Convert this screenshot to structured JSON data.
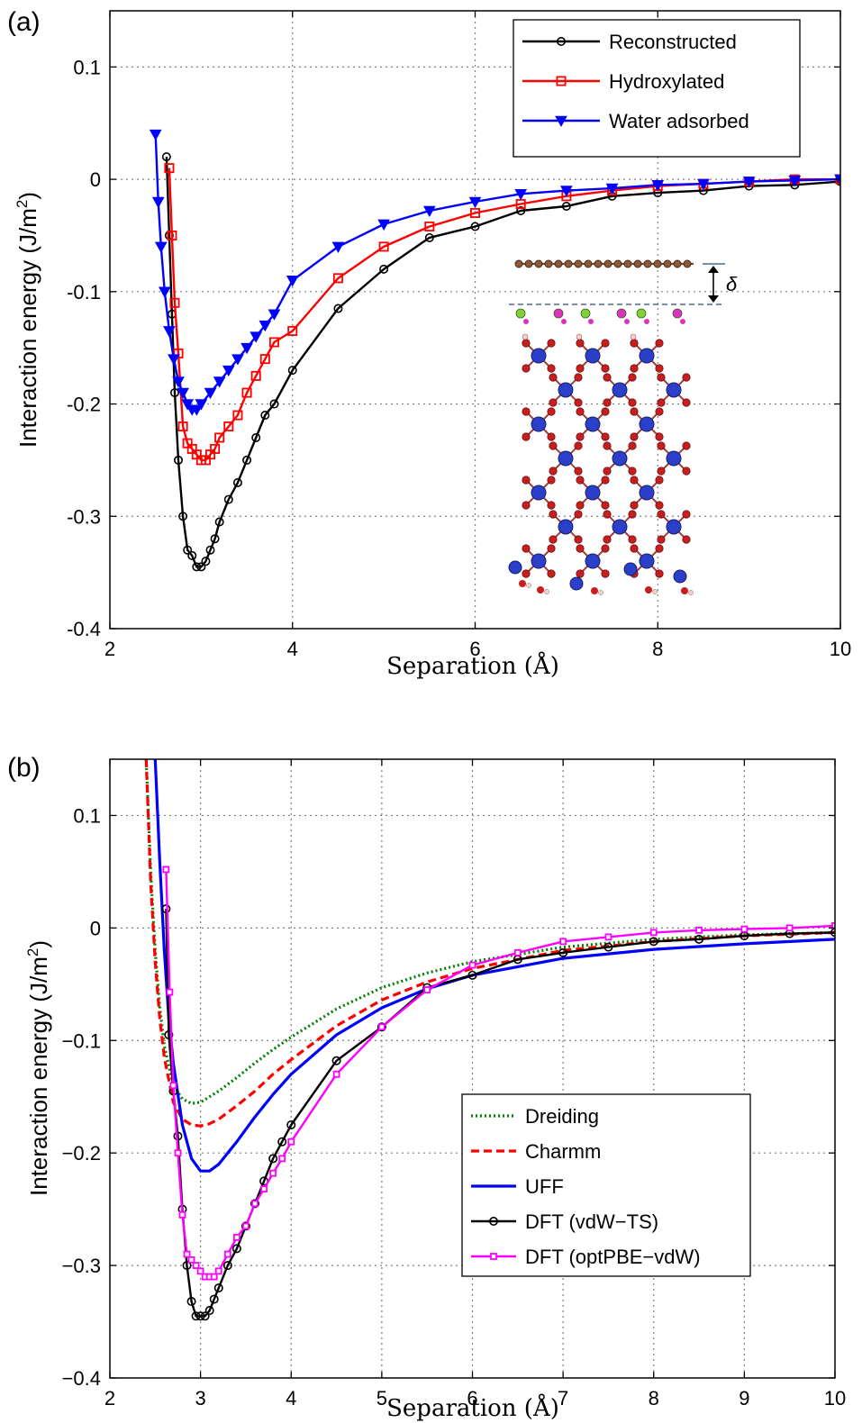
{
  "chart_data": [
    {
      "panel_label": "(a)",
      "type": "line",
      "xlabel": "Separation (Å)",
      "ylabel": "Interaction energy (J/m",
      "ylabel_sup": "2",
      "ylabel_close": ")",
      "xlim": [
        2,
        10
      ],
      "ylim": [
        -0.4,
        0.15
      ],
      "xticks": [
        2,
        4,
        6,
        8,
        10
      ],
      "yticks": [
        -0.4,
        -0.3,
        -0.2,
        -0.1,
        0,
        0.1
      ],
      "xtick_labels": [
        "2",
        "4",
        "6",
        "8",
        "10"
      ],
      "ytick_labels": [
        "-0.4",
        "-0.3",
        "-0.2",
        "-0.1",
        "0",
        "0.1"
      ],
      "grid": true,
      "legend_position": "top-right",
      "inset": "atomic structure: graphene layer above hydroxylated silica slab, separation δ",
      "inset_label": "δ",
      "series": [
        {
          "name": "Reconstructed",
          "color": "#000000",
          "marker": "circle",
          "dash": "",
          "x": [
            2.62,
            2.65,
            2.68,
            2.71,
            2.75,
            2.8,
            2.85,
            2.9,
            2.95,
            3.0,
            3.05,
            3.1,
            3.15,
            3.2,
            3.3,
            3.4,
            3.5,
            3.6,
            3.7,
            3.8,
            4.0,
            4.5,
            5.0,
            5.5,
            6.0,
            6.5,
            7.0,
            7.5,
            8.0,
            8.5,
            9.0,
            9.5,
            10.0
          ],
          "y": [
            0.02,
            -0.05,
            -0.12,
            -0.19,
            -0.25,
            -0.3,
            -0.33,
            -0.335,
            -0.345,
            -0.345,
            -0.34,
            -0.33,
            -0.32,
            -0.305,
            -0.285,
            -0.27,
            -0.25,
            -0.23,
            -0.21,
            -0.2,
            -0.17,
            -0.115,
            -0.08,
            -0.052,
            -0.042,
            -0.028,
            -0.024,
            -0.015,
            -0.012,
            -0.01,
            -0.006,
            -0.005,
            -0.002
          ]
        },
        {
          "name": "Hydroxylated",
          "color": "#ff0000",
          "marker": "square",
          "dash": "",
          "x": [
            2.65,
            2.68,
            2.71,
            2.75,
            2.8,
            2.85,
            2.9,
            2.95,
            3.0,
            3.05,
            3.1,
            3.15,
            3.2,
            3.3,
            3.4,
            3.5,
            3.6,
            3.7,
            3.8,
            4.0,
            4.5,
            5.0,
            5.5,
            6.0,
            6.5,
            7.0,
            7.5,
            8.0,
            8.5,
            9.0,
            9.5,
            10.0
          ],
          "y": [
            0.01,
            -0.05,
            -0.11,
            -0.155,
            -0.22,
            -0.235,
            -0.24,
            -0.245,
            -0.25,
            -0.25,
            -0.245,
            -0.24,
            -0.23,
            -0.22,
            -0.21,
            -0.19,
            -0.175,
            -0.16,
            -0.145,
            -0.135,
            -0.088,
            -0.06,
            -0.042,
            -0.03,
            -0.022,
            -0.015,
            -0.01,
            -0.006,
            -0.004,
            -0.002,
            0.0,
            0.0
          ]
        },
        {
          "name": "Water adsorbed",
          "color": "#0000ff",
          "marker": "triangle-down",
          "dash": "",
          "x": [
            2.5,
            2.53,
            2.56,
            2.6,
            2.65,
            2.7,
            2.75,
            2.8,
            2.85,
            2.9,
            2.95,
            3.0,
            3.1,
            3.2,
            3.3,
            3.4,
            3.5,
            3.6,
            3.7,
            3.8,
            4.0,
            4.5,
            5.0,
            5.5,
            6.0,
            6.5,
            7.0,
            7.5,
            8.0,
            8.5,
            9.0,
            9.5,
            10.0
          ],
          "y": [
            0.04,
            -0.02,
            -0.06,
            -0.1,
            -0.135,
            -0.16,
            -0.18,
            -0.19,
            -0.2,
            -0.205,
            -0.205,
            -0.2,
            -0.19,
            -0.18,
            -0.17,
            -0.16,
            -0.15,
            -0.14,
            -0.13,
            -0.12,
            -0.09,
            -0.06,
            -0.04,
            -0.028,
            -0.02,
            -0.013,
            -0.01,
            -0.008,
            -0.005,
            -0.004,
            -0.002,
            -0.001,
            0.0
          ]
        }
      ]
    },
    {
      "panel_label": "(b)",
      "type": "line",
      "xlabel": "Separation (Å)",
      "ylabel": "Interaction energy (J/m",
      "ylabel_sup": "2",
      "ylabel_close": ")",
      "xlim": [
        2,
        10
      ],
      "ylim": [
        -0.4,
        0.15
      ],
      "xticks": [
        2,
        3,
        4,
        5,
        6,
        7,
        8,
        9,
        10
      ],
      "yticks": [
        -0.4,
        -0.3,
        -0.2,
        -0.1,
        0,
        0.1
      ],
      "xtick_labels": [
        "2",
        "3",
        "4",
        "5",
        "6",
        "7",
        "8",
        "9",
        "10"
      ],
      "ytick_labels": [
        "−0.4",
        "−0.3",
        "−0.2",
        "−0.1",
        "0",
        "0.1"
      ],
      "grid": true,
      "legend_position": "center-right",
      "series": [
        {
          "name": "Dreiding",
          "color": "#007f00",
          "marker": "none",
          "dash": "dotted",
          "x": [
            2.4,
            2.45,
            2.5,
            2.55,
            2.6,
            2.7,
            2.8,
            2.9,
            3.0,
            3.1,
            3.2,
            3.4,
            3.6,
            3.8,
            4.0,
            4.5,
            5.0,
            5.5,
            6.0,
            7.0,
            8.0,
            9.0,
            10.0
          ],
          "y": [
            0.15,
            0.05,
            -0.02,
            -0.07,
            -0.105,
            -0.14,
            -0.152,
            -0.156,
            -0.155,
            -0.15,
            -0.145,
            -0.133,
            -0.12,
            -0.108,
            -0.097,
            -0.072,
            -0.053,
            -0.04,
            -0.03,
            -0.017,
            -0.01,
            -0.006,
            -0.004
          ]
        },
        {
          "name": "Charmm",
          "color": "#ff0000",
          "marker": "none",
          "dash": "dashed",
          "x": [
            2.4,
            2.45,
            2.5,
            2.55,
            2.6,
            2.7,
            2.8,
            2.9,
            3.0,
            3.1,
            3.2,
            3.4,
            3.6,
            3.8,
            4.0,
            4.5,
            5.0,
            5.5,
            6.0,
            7.0,
            8.0,
            9.0,
            10.0
          ],
          "y": [
            0.15,
            0.04,
            -0.03,
            -0.08,
            -0.115,
            -0.155,
            -0.17,
            -0.175,
            -0.176,
            -0.174,
            -0.17,
            -0.158,
            -0.145,
            -0.13,
            -0.117,
            -0.087,
            -0.064,
            -0.048,
            -0.036,
            -0.02,
            -0.012,
            -0.007,
            -0.004
          ]
        },
        {
          "name": "UFF",
          "color": "#0000ff",
          "marker": "none",
          "dash": "",
          "x": [
            2.5,
            2.55,
            2.6,
            2.65,
            2.7,
            2.8,
            2.9,
            3.0,
            3.1,
            3.2,
            3.3,
            3.4,
            3.6,
            3.8,
            4.0,
            4.5,
            5.0,
            5.5,
            6.0,
            7.0,
            8.0,
            9.0,
            10.0
          ],
          "y": [
            0.15,
            0.06,
            -0.02,
            -0.08,
            -0.12,
            -0.175,
            -0.205,
            -0.216,
            -0.216,
            -0.21,
            -0.2,
            -0.19,
            -0.168,
            -0.148,
            -0.13,
            -0.095,
            -0.071,
            -0.054,
            -0.042,
            -0.027,
            -0.019,
            -0.014,
            -0.01
          ]
        },
        {
          "name": "DFT (vdW−TS)",
          "color": "#000000",
          "marker": "circle",
          "dash": "",
          "x": [
            2.62,
            2.65,
            2.7,
            2.75,
            2.8,
            2.85,
            2.9,
            2.95,
            3.0,
            3.05,
            3.1,
            3.15,
            3.2,
            3.3,
            3.4,
            3.5,
            3.6,
            3.7,
            3.8,
            3.9,
            4.0,
            4.5,
            5.0,
            5.5,
            6.0,
            6.5,
            7.0,
            7.5,
            8.0,
            8.5,
            9.0,
            9.5,
            10.0
          ],
          "y": [
            0.017,
            -0.095,
            -0.145,
            -0.185,
            -0.25,
            -0.3,
            -0.332,
            -0.345,
            -0.345,
            -0.345,
            -0.34,
            -0.33,
            -0.32,
            -0.3,
            -0.285,
            -0.265,
            -0.245,
            -0.225,
            -0.205,
            -0.19,
            -0.175,
            -0.118,
            -0.088,
            -0.053,
            -0.042,
            -0.028,
            -0.022,
            -0.017,
            -0.012,
            -0.01,
            -0.007,
            -0.005,
            -0.004
          ]
        },
        {
          "name": "DFT (optPBE−vdW)",
          "color": "#ff00ff",
          "marker": "square",
          "dash": "",
          "x": [
            2.62,
            2.66,
            2.7,
            2.75,
            2.8,
            2.85,
            2.9,
            2.95,
            3.0,
            3.05,
            3.1,
            3.15,
            3.2,
            3.3,
            3.4,
            3.5,
            3.6,
            3.7,
            3.8,
            3.9,
            4.0,
            4.5,
            5.0,
            5.5,
            6.0,
            6.5,
            7.0,
            7.5,
            8.0,
            8.5,
            9.0,
            9.5,
            10.0
          ],
          "y": [
            0.052,
            -0.057,
            -0.14,
            -0.2,
            -0.255,
            -0.29,
            -0.295,
            -0.3,
            -0.305,
            -0.31,
            -0.31,
            -0.31,
            -0.305,
            -0.29,
            -0.275,
            -0.265,
            -0.245,
            -0.232,
            -0.218,
            -0.205,
            -0.19,
            -0.13,
            -0.088,
            -0.055,
            -0.033,
            -0.022,
            -0.012,
            -0.008,
            -0.004,
            -0.002,
            -0.001,
            0.0,
            0.002
          ]
        }
      ]
    }
  ]
}
